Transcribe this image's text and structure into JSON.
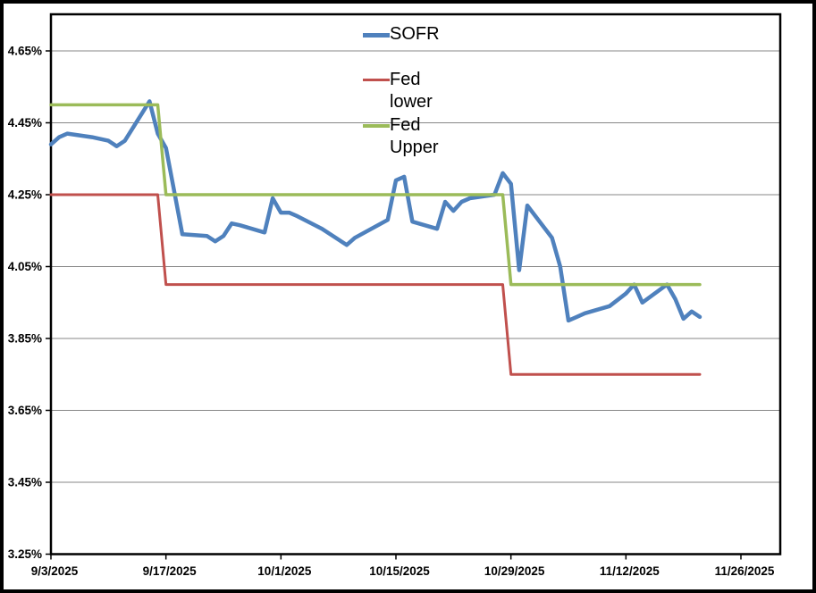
{
  "chart_data": {
    "type": "line",
    "title": "",
    "grid": true,
    "y_axis": {
      "min": 3.25,
      "max": 4.75,
      "tick_step": 0.2,
      "tick_labels": [
        "3.25%",
        "3.45%",
        "3.65%",
        "3.85%",
        "4.05%",
        "4.25%",
        "4.45%",
        "4.65%"
      ],
      "tick_values": [
        3.25,
        3.45,
        3.65,
        3.85,
        4.05,
        4.25,
        4.45,
        4.65
      ]
    },
    "x_axis": {
      "tick_labels": [
        "9/3/2025",
        "9/17/2025",
        "10/1/2025",
        "10/15/2025",
        "10/29/2025",
        "11/12/2025",
        "11/26/2025"
      ]
    },
    "legend": {
      "position": "top-center",
      "transparent": true
    },
    "series": [
      {
        "name": "SOFR",
        "color": "#4F81BD",
        "width": 4.5,
        "points": [
          [
            "9/3/2025",
            4.39
          ],
          [
            "9/4/2025",
            4.41
          ],
          [
            "9/5/2025",
            4.42
          ],
          [
            "9/8/2025",
            4.41
          ],
          [
            "9/9/2025",
            4.405
          ],
          [
            "9/10/2025",
            4.4
          ],
          [
            "9/11/2025",
            4.385
          ],
          [
            "9/12/2025",
            4.4
          ],
          [
            "9/15/2025",
            4.51
          ],
          [
            "9/16/2025",
            4.42
          ],
          [
            "9/17/2025",
            4.38
          ],
          [
            "9/18/2025",
            4.26
          ],
          [
            "9/19/2025",
            4.14
          ],
          [
            "9/22/2025",
            4.135
          ],
          [
            "9/23/2025",
            4.12
          ],
          [
            "9/24/2025",
            4.135
          ],
          [
            "9/25/2025",
            4.17
          ],
          [
            "9/26/2025",
            4.165
          ],
          [
            "9/29/2025",
            4.145
          ],
          [
            "9/30/2025",
            4.24
          ],
          [
            "10/1/2025",
            4.2
          ],
          [
            "10/2/2025",
            4.2
          ],
          [
            "10/3/2025",
            4.19
          ],
          [
            "10/6/2025",
            4.155
          ],
          [
            "10/7/2025",
            4.14
          ],
          [
            "10/8/2025",
            4.125
          ],
          [
            "10/9/2025",
            4.11
          ],
          [
            "10/10/2025",
            4.13
          ],
          [
            "10/14/2025",
            4.18
          ],
          [
            "10/15/2025",
            4.29
          ],
          [
            "10/16/2025",
            4.3
          ],
          [
            "10/17/2025",
            4.175
          ],
          [
            "10/20/2025",
            4.155
          ],
          [
            "10/21/2025",
            4.23
          ],
          [
            "10/22/2025",
            4.205
          ],
          [
            "10/23/2025",
            4.23
          ],
          [
            "10/24/2025",
            4.24
          ],
          [
            "10/27/2025",
            4.25
          ],
          [
            "10/28/2025",
            4.31
          ],
          [
            "10/29/2025",
            4.28
          ],
          [
            "10/30/2025",
            4.04
          ],
          [
            "10/31/2025",
            4.22
          ],
          [
            "11/3/2025",
            4.13
          ],
          [
            "11/4/2025",
            4.05
          ],
          [
            "11/5/2025",
            3.9
          ],
          [
            "11/6/2025",
            3.91
          ],
          [
            "11/7/2025",
            3.92
          ],
          [
            "11/10/2025",
            3.94
          ],
          [
            "11/12/2025",
            3.975
          ],
          [
            "11/13/2025",
            4.0
          ],
          [
            "11/14/2025",
            3.95
          ],
          [
            "11/17/2025",
            4.0
          ],
          [
            "11/18/2025",
            3.96
          ],
          [
            "11/19/2025",
            3.905
          ],
          [
            "11/20/2025",
            3.925
          ],
          [
            "11/21/2025",
            3.91
          ]
        ]
      },
      {
        "name": "Fed lower",
        "color": "#C0504D",
        "width": 3,
        "points": [
          [
            "9/3/2025",
            4.25
          ],
          [
            "9/16/2025",
            4.25
          ],
          [
            "9/17/2025",
            4.0
          ],
          [
            "10/28/2025",
            4.0
          ],
          [
            "10/29/2025",
            3.75
          ],
          [
            "11/21/2025",
            3.75
          ]
        ]
      },
      {
        "name": "Fed Upper",
        "color": "#9BBB59",
        "width": 3.5,
        "points": [
          [
            "9/3/2025",
            4.5
          ],
          [
            "9/16/2025",
            4.5
          ],
          [
            "9/17/2025",
            4.25
          ],
          [
            "10/28/2025",
            4.25
          ],
          [
            "10/29/2025",
            4.0
          ],
          [
            "11/21/2025",
            4.0
          ]
        ]
      }
    ]
  }
}
